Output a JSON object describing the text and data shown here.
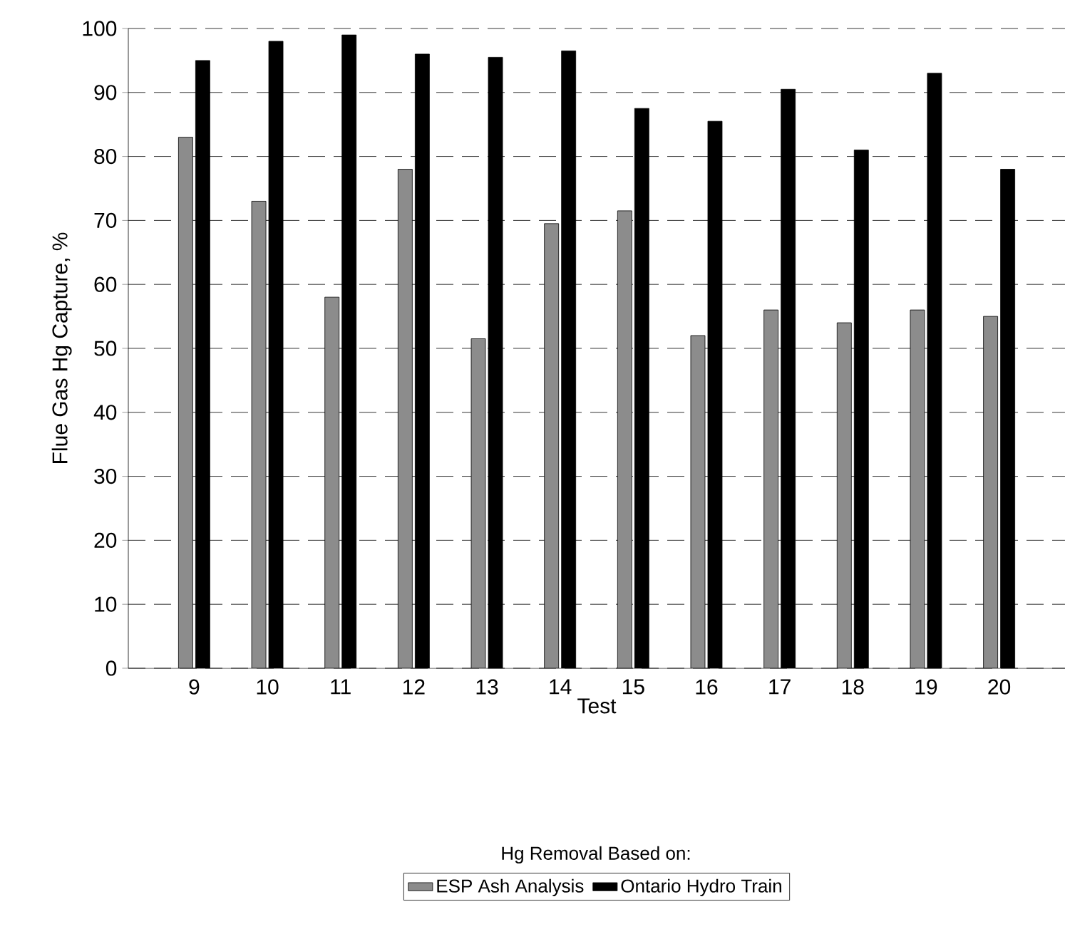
{
  "chart_data": {
    "type": "bar",
    "xlabel": "Test",
    "ylabel": "Flue Gas Hg Capture, %",
    "legend_title": "Hg Removal Based on:",
    "categories": [
      "9",
      "10",
      "11",
      "12",
      "13",
      "14",
      "15",
      "16",
      "17",
      "18",
      "19",
      "20"
    ],
    "series": [
      {
        "name": "ESP Ash Analysis",
        "color": "#8c8c8c",
        "values": [
          83,
          73,
          58,
          78,
          51.5,
          69.5,
          71.5,
          52,
          56,
          54,
          56,
          55
        ]
      },
      {
        "name": "Ontario Hydro Train",
        "color": "#000000",
        "values": [
          95,
          98,
          99,
          96,
          95.5,
          96.5,
          87.5,
          85.5,
          90.5,
          81,
          93,
          78
        ]
      }
    ],
    "ylim": [
      0,
      100
    ],
    "yticks": [
      0,
      10,
      20,
      30,
      40,
      50,
      60,
      70,
      80,
      90,
      100
    ],
    "grid": "y",
    "legend": "bottom"
  }
}
